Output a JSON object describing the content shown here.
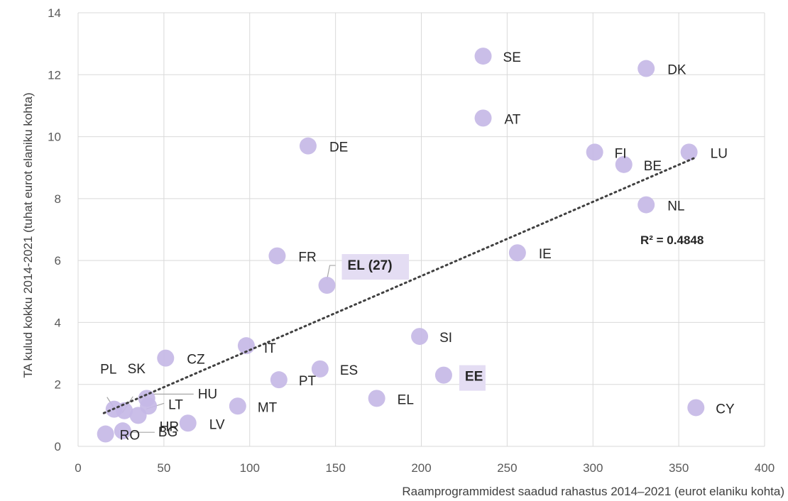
{
  "chart_data": {
    "type": "scatter",
    "xlabel": "Raamprogrammidest saadud rahastus 2014–2021 (eurot elaniku kohta)",
    "ylabel": "TA kulud kokku 2014-2021 (tuhat eurot elaniku kohta)",
    "xlim": [
      0,
      400
    ],
    "ylim": [
      0,
      14
    ],
    "x_ticks": [
      "0",
      "50",
      "100",
      "150",
      "200",
      "250",
      "300",
      "350",
      "400"
    ],
    "y_ticks": [
      "0",
      "2",
      "4",
      "6",
      "8",
      "10",
      "12",
      "14"
    ],
    "grid": true,
    "trendline": {
      "type": "linear",
      "r_squared_label": "R² = 0.4848",
      "x_range": [
        15,
        360
      ]
    },
    "points": [
      {
        "label": "SE",
        "x": 236,
        "y": 12.6
      },
      {
        "label": "DK",
        "x": 331,
        "y": 12.2
      },
      {
        "label": "AT",
        "x": 236,
        "y": 10.6
      },
      {
        "label": "DE",
        "x": 134,
        "y": 9.7
      },
      {
        "label": "FI",
        "x": 301,
        "y": 9.5
      },
      {
        "label": "LU",
        "x": 356,
        "y": 9.5
      },
      {
        "label": "BE",
        "x": 318,
        "y": 9.1
      },
      {
        "label": "NL",
        "x": 331,
        "y": 7.8
      },
      {
        "label": "IE",
        "x": 256,
        "y": 6.25
      },
      {
        "label": "FR",
        "x": 116,
        "y": 6.15
      },
      {
        "label": "EL (27)",
        "x": 145,
        "y": 5.2,
        "highlight": true
      },
      {
        "label": "SI",
        "x": 199,
        "y": 3.55
      },
      {
        "label": "IT",
        "x": 98,
        "y": 3.25
      },
      {
        "label": "CZ",
        "x": 51,
        "y": 2.85
      },
      {
        "label": "ES",
        "x": 141,
        "y": 2.5
      },
      {
        "label": "EE",
        "x": 213,
        "y": 2.3,
        "highlight": true
      },
      {
        "label": "PT",
        "x": 117,
        "y": 2.15
      },
      {
        "label": "EL",
        "x": 174,
        "y": 1.55
      },
      {
        "label": "HU",
        "x": 40,
        "y": 1.55
      },
      {
        "label": "LT",
        "x": 41,
        "y": 1.3
      },
      {
        "label": "MT",
        "x": 93,
        "y": 1.3
      },
      {
        "label": "CY",
        "x": 360,
        "y": 1.25
      },
      {
        "label": "PL",
        "x": 21,
        "y": 1.2
      },
      {
        "label": "SK",
        "x": 27,
        "y": 1.15
      },
      {
        "label": "HR",
        "x": 35,
        "y": 1.0
      },
      {
        "label": "LV",
        "x": 64,
        "y": 0.75
      },
      {
        "label": "BG",
        "x": 26,
        "y": 0.5
      },
      {
        "label": "RO",
        "x": 16,
        "y": 0.4
      }
    ]
  }
}
